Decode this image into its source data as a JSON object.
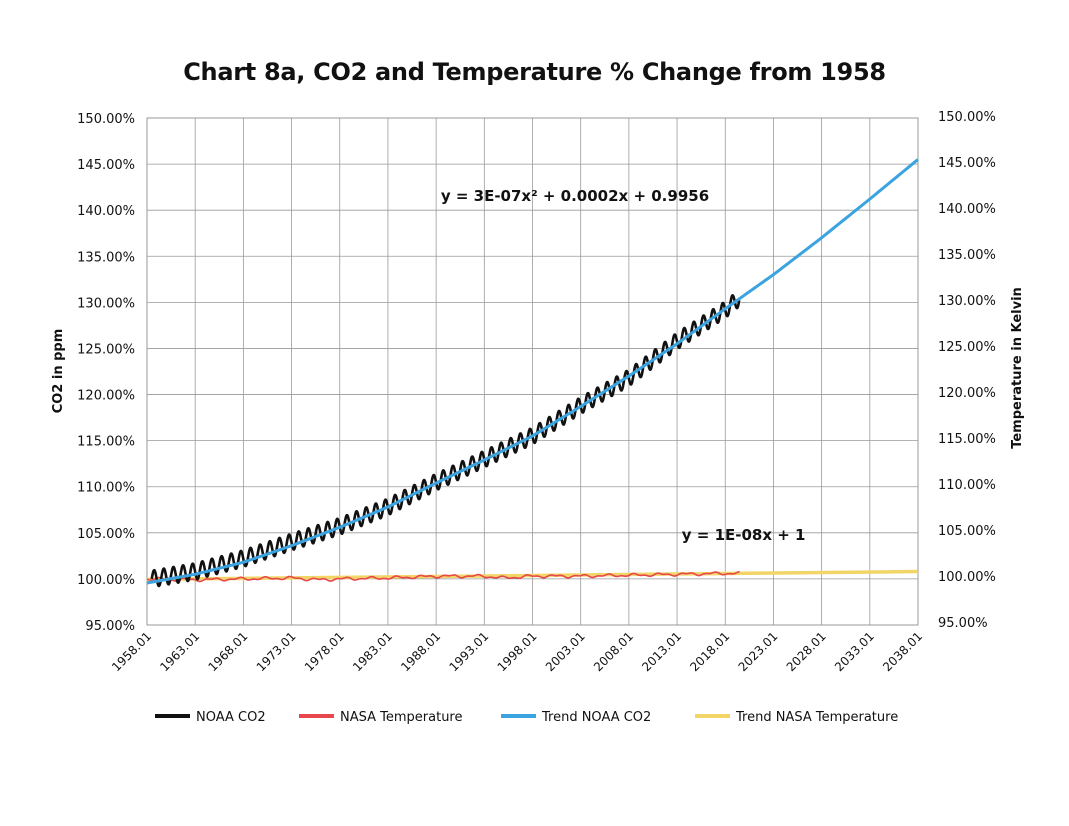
{
  "chart_data": {
    "type": "line",
    "title": "Chart 8a, CO2 and Temperature % Change from 1958",
    "ylabel_left": "CO2 in ppm",
    "ylabel_right": "Temperature in Kelvin",
    "xlim": [
      1958.01,
      2038.01
    ],
    "ylim": [
      0.95,
      1.5
    ],
    "y_ticks": [
      "150.00%",
      "145.00%",
      "140.00%",
      "135.00%",
      "130.00%",
      "125.00%",
      "120.00%",
      "115.00%",
      "110.00%",
      "105.00%",
      "100.00%",
      "95.00%"
    ],
    "x_ticks": [
      "1958.01",
      "1963.01",
      "1968.01",
      "1973.01",
      "1978.01",
      "1983.01",
      "1988.01",
      "1993.01",
      "1998.01",
      "2003.01",
      "2008.01",
      "2013.01",
      "2018.01",
      "2023.01",
      "2028.01",
      "2033.01",
      "2038.01"
    ],
    "grid": true,
    "legend_position": "bottom",
    "series": [
      {
        "name": "NOAA CO2",
        "color": "#111111",
        "x": [
          1958.5,
          1963,
          1968,
          1973,
          1978,
          1983,
          1988,
          1993,
          1998,
          2003,
          2008,
          2013,
          2018,
          2019.5
        ],
        "y": [
          1.0,
          1.008,
          1.022,
          1.04,
          1.057,
          1.078,
          1.105,
          1.13,
          1.155,
          1.188,
          1.218,
          1.258,
          1.292,
          1.305
        ],
        "seasonal_amplitude": 0.009
      },
      {
        "name": "NASA Temperature",
        "color": "#e8474c",
        "x": [
          1958,
          1963,
          1968,
          1973,
          1976,
          1978,
          1983,
          1988,
          1993,
          1995,
          1998,
          2003,
          2008,
          2013,
          2018,
          2019.5
        ],
        "y": [
          1.0,
          0.999,
          1.0,
          1.001,
          0.999,
          1.0,
          1.001,
          1.003,
          1.003,
          1.001,
          1.003,
          1.003,
          1.004,
          1.005,
          1.006,
          1.006
        ]
      },
      {
        "name": "Trend NOAA CO2",
        "color": "#3ba3e0",
        "x": [
          1958,
          1963,
          1968,
          1973,
          1978,
          1983,
          1988,
          1993,
          1998,
          2003,
          2008,
          2013,
          2018,
          2023,
          2028,
          2033,
          2038
        ],
        "y": [
          0.9956,
          1.005,
          1.018,
          1.036,
          1.056,
          1.078,
          1.104,
          1.129,
          1.155,
          1.187,
          1.22,
          1.255,
          1.293,
          1.33,
          1.37,
          1.412,
          1.455
        ]
      },
      {
        "name": "Trend NASA Temperature",
        "color": "#f2d566",
        "x": [
          1958,
          2038
        ],
        "y": [
          0.9995,
          1.008
        ]
      }
    ],
    "annotations": [
      {
        "text": "y = 3E-07x² + 0.0002x + 0.9956",
        "x": 1988.5,
        "y": 1.41
      },
      {
        "text": "y = 1E-08x + 1",
        "x": 2013.5,
        "y": 1.042
      }
    ]
  }
}
